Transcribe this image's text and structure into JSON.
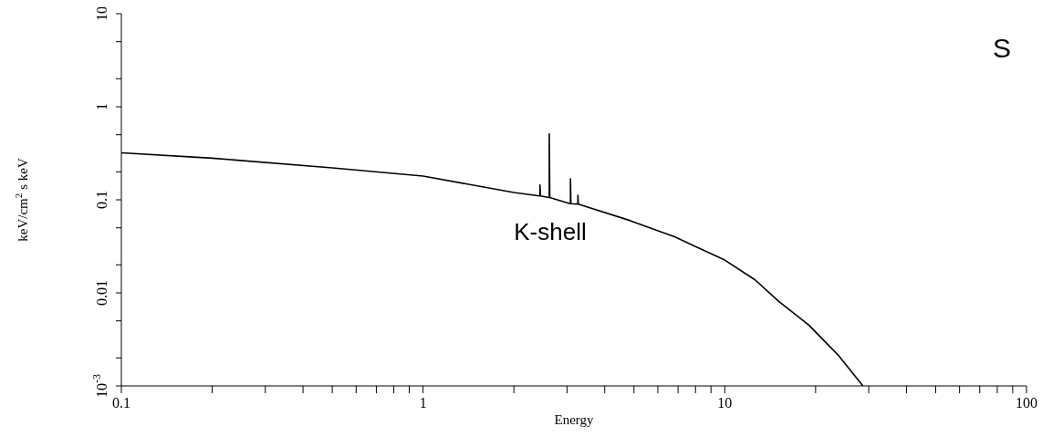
{
  "chart_data": {
    "type": "line",
    "xlabel": "Energy",
    "ylabel": "keV/cm$^{2}$ s keV",
    "log": "xy",
    "xlim": [
      0.1,
      100
    ],
    "ylim": [
      0.001,
      10
    ],
    "xticks": [
      0.1,
      {
        "value": 0.2,
        "label": null
      },
      {
        "value": 0.3,
        "label": null
      },
      {
        "value": 0.4,
        "label": null
      },
      {
        "value": 0.5,
        "label": null
      },
      {
        "value": 0.6,
        "label": null
      },
      {
        "value": 0.7,
        "label": null
      },
      {
        "value": 0.8,
        "label": null
      },
      {
        "value": 0.9,
        "label": null
      },
      1,
      {
        "value": 2,
        "label": null
      },
      {
        "value": 3,
        "label": null
      },
      {
        "value": 4,
        "label": null
      },
      {
        "value": 5,
        "label": null
      },
      {
        "value": 6,
        "label": null
      },
      {
        "value": 7,
        "label": null
      },
      {
        "value": 8,
        "label": null
      },
      {
        "value": 9,
        "label": null
      },
      10,
      {
        "value": 20,
        "label": null
      },
      {
        "value": 30,
        "label": null
      },
      {
        "value": 40,
        "label": null
      },
      {
        "value": 50,
        "label": null
      },
      {
        "value": 60,
        "label": null
      },
      {
        "value": 70,
        "label": null
      },
      {
        "value": 80,
        "label": null
      },
      {
        "value": 90,
        "label": null
      },
      100
    ],
    "yticks": [
      {
        "value": 0.001,
        "label": "10$^{-3}$"
      },
      {
        "value": 0.002,
        "label": null
      },
      {
        "value": 0.005,
        "label": null
      },
      0.01,
      {
        "value": 0.02,
        "label": null
      },
      {
        "value": 0.05,
        "label": null
      },
      0.1,
      {
        "value": 0.2,
        "label": null
      },
      {
        "value": 0.5,
        "label": null
      },
      1,
      {
        "value": 2,
        "label": null
      },
      {
        "value": 5,
        "label": null
      },
      10
    ],
    "marker": "none",
    "line_style": "solid",
    "annotations": [
      "S",
      "K-shell"
    ],
    "series": [
      {
        "color": "#000000",
        "x": [
          0.1,
          0.2,
          0.5,
          1,
          2,
          2.43,
          2.44,
          2.44,
          2.45,
          2.61,
          2.62,
          2.62,
          2.63,
          3.07,
          3.08,
          3.08,
          3.09,
          3.25,
          3.26,
          3.26,
          3.27,
          4.84,
          6.82,
          10,
          12.6,
          15.1,
          19,
          23.9,
          28.7
        ],
        "values": [
          0.32,
          0.28,
          0.22,
          0.18,
          0.12,
          0.11,
          0.11,
          0.144,
          0.11,
          0.106,
          0.106,
          0.51,
          0.106,
          0.091,
          0.091,
          0.168,
          0.091,
          0.09,
          0.09,
          0.112,
          0.09,
          0.06,
          0.04,
          0.0225,
          0.0138,
          0.0081,
          0.0045,
          0.0021,
          0.001
        ]
      }
    ]
  }
}
